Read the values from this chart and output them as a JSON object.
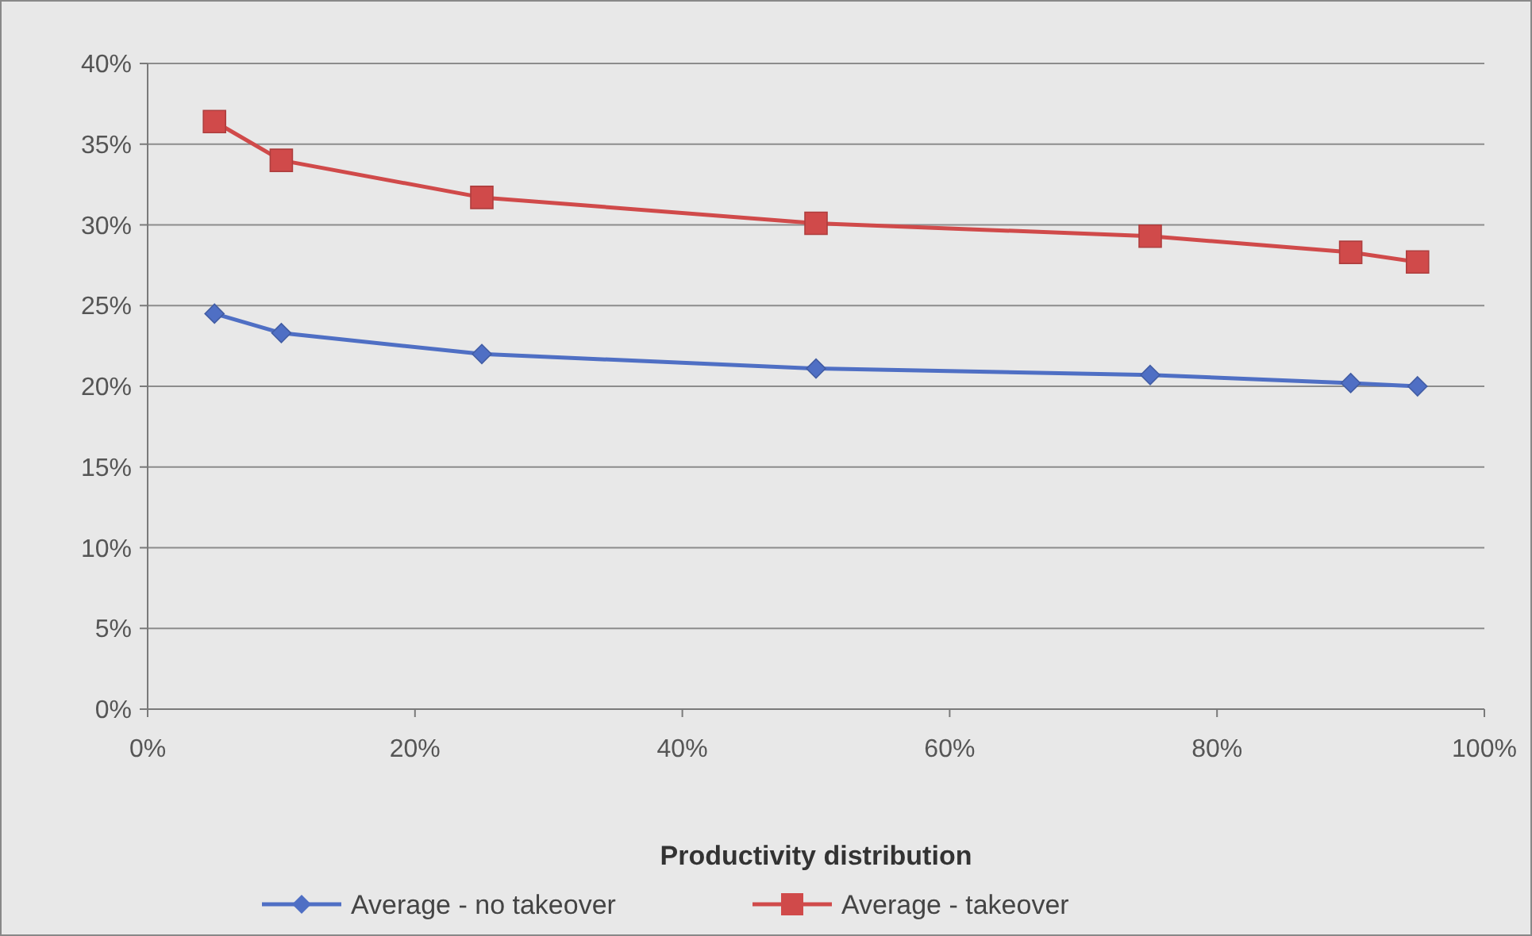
{
  "chart_data": {
    "type": "line",
    "xlabel": "Productivity distribution",
    "x": [
      5,
      10,
      25,
      50,
      75,
      90,
      95
    ],
    "xlim": [
      0,
      100
    ],
    "xticks": [
      {
        "value": 0,
        "label": "0%"
      },
      {
        "value": 20,
        "label": "20%"
      },
      {
        "value": 40,
        "label": "40%"
      },
      {
        "value": 60,
        "label": "60%"
      },
      {
        "value": 80,
        "label": "80%"
      },
      {
        "value": 100,
        "label": "100%"
      }
    ],
    "ylim": [
      0,
      40
    ],
    "yticks": [
      {
        "value": 0,
        "label": "0%"
      },
      {
        "value": 5,
        "label": "5%"
      },
      {
        "value": 10,
        "label": "10%"
      },
      {
        "value": 15,
        "label": "15%"
      },
      {
        "value": 20,
        "label": "20%"
      },
      {
        "value": 25,
        "label": "25%"
      },
      {
        "value": 30,
        "label": "30%"
      },
      {
        "value": 35,
        "label": "35%"
      },
      {
        "value": 40,
        "label": "40%"
      }
    ],
    "grid": "y",
    "legend": "bottom",
    "series": [
      {
        "name": "Average - no takeover",
        "color": "#4f6fc4",
        "marker": "diamond",
        "values": [
          24.5,
          23.3,
          22.0,
          21.1,
          20.7,
          20.2,
          20.0
        ]
      },
      {
        "name": "Average - takeover",
        "color": "#d04a4a",
        "marker": "square",
        "values": [
          36.4,
          34.0,
          31.7,
          30.1,
          29.3,
          28.3,
          27.7
        ]
      }
    ]
  }
}
